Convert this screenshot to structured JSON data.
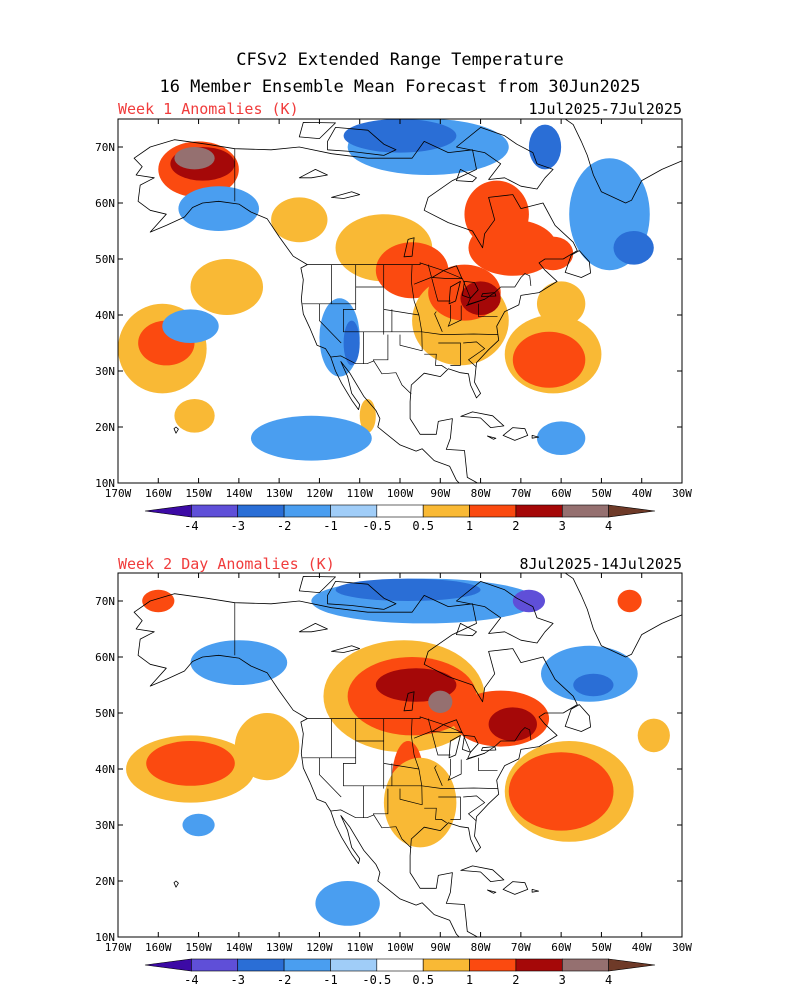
{
  "header": {
    "title_line1": "CFSv2 Extended Range Temperature",
    "title_line2": "16 Member Ensemble Mean Forecast from 30Jun2025"
  },
  "panels": [
    {
      "label": "Week 1 Anomalies (K)",
      "dates": "1Jul2025-7Jul2025",
      "blobs": [
        {
          "level": 1,
          "lon": -159,
          "lat": 34,
          "rx": 11,
          "ry": 8
        },
        {
          "level": 2,
          "lon": -158,
          "lat": 35,
          "rx": 7,
          "ry": 4
        },
        {
          "level": 1,
          "lon": -143,
          "lat": 45,
          "rx": 9,
          "ry": 5
        },
        {
          "level": 1,
          "lon": -151,
          "lat": 22,
          "rx": 5,
          "ry": 3
        },
        {
          "level": 1,
          "lon": -104,
          "lat": 52,
          "rx": 12,
          "ry": 6
        },
        {
          "level": 2,
          "lon": -97,
          "lat": 48,
          "rx": 9,
          "ry": 5
        },
        {
          "level": 1,
          "lon": -85,
          "lat": 39,
          "rx": 12,
          "ry": 8
        },
        {
          "level": 2,
          "lon": -84,
          "lat": 44,
          "rx": 9,
          "ry": 5
        },
        {
          "level": 3,
          "lon": -80,
          "lat": 43,
          "rx": 5,
          "ry": 3
        },
        {
          "level": 2,
          "lon": -76,
          "lat": 58,
          "rx": 8,
          "ry": 6
        },
        {
          "level": 2,
          "lon": -72,
          "lat": 52,
          "rx": 11,
          "ry": 5
        },
        {
          "level": 2,
          "lon": -62,
          "lat": 51,
          "rx": 5,
          "ry": 3
        },
        {
          "level": 1,
          "lon": -62,
          "lat": 33,
          "rx": 12,
          "ry": 7
        },
        {
          "level": 2,
          "lon": -63,
          "lat": 32,
          "rx": 9,
          "ry": 5
        },
        {
          "level": 1,
          "lon": -60,
          "lat": 42,
          "rx": 6,
          "ry": 4
        },
        {
          "level": 1,
          "lon": -125,
          "lat": 57,
          "rx": 7,
          "ry": 4
        },
        {
          "level": 2,
          "lon": -150,
          "lat": 66,
          "rx": 10,
          "ry": 5
        },
        {
          "level": 3,
          "lon": -149,
          "lat": 67,
          "rx": 8,
          "ry": 3
        },
        {
          "level": 4,
          "lon": -151,
          "lat": 68,
          "rx": 5,
          "ry": 2
        },
        {
          "level": 1,
          "lon": -108,
          "lat": 22,
          "rx": 2,
          "ry": 3
        },
        {
          "level": -1,
          "lon": -115,
          "lat": 36,
          "rx": 5,
          "ry": 7
        },
        {
          "level": -2,
          "lon": -112,
          "lat": 35,
          "rx": 2,
          "ry": 4
        },
        {
          "level": -1,
          "lon": -122,
          "lat": 18,
          "rx": 15,
          "ry": 4
        },
        {
          "level": -1,
          "lon": -145,
          "lat": 59,
          "rx": 10,
          "ry": 4
        },
        {
          "level": -1,
          "lon": -93,
          "lat": 70,
          "rx": 20,
          "ry": 5
        },
        {
          "level": -2,
          "lon": -100,
          "lat": 72,
          "rx": 14,
          "ry": 3
        },
        {
          "level": -2,
          "lon": -64,
          "lat": 70,
          "rx": 4,
          "ry": 4
        },
        {
          "level": -1,
          "lon": -48,
          "lat": 58,
          "rx": 10,
          "ry": 10
        },
        {
          "level": -2,
          "lon": -42,
          "lat": 52,
          "rx": 5,
          "ry": 3
        },
        {
          "level": -1,
          "lon": -60,
          "lat": 18,
          "rx": 6,
          "ry": 3
        },
        {
          "level": -1,
          "lon": -152,
          "lat": 38,
          "rx": 7,
          "ry": 3
        }
      ]
    },
    {
      "label": "Week 2 Day Anomalies (K)",
      "dates": "8Jul2025-14Jul2025",
      "blobs": [
        {
          "level": 1,
          "lon": -152,
          "lat": 40,
          "rx": 16,
          "ry": 6
        },
        {
          "level": 2,
          "lon": -152,
          "lat": 41,
          "rx": 11,
          "ry": 4
        },
        {
          "level": 1,
          "lon": -133,
          "lat": 44,
          "rx": 8,
          "ry": 6
        },
        {
          "level": 1,
          "lon": -99,
          "lat": 53,
          "rx": 20,
          "ry": 10
        },
        {
          "level": 2,
          "lon": -97,
          "lat": 53,
          "rx": 16,
          "ry": 7
        },
        {
          "level": 3,
          "lon": -96,
          "lat": 55,
          "rx": 10,
          "ry": 3
        },
        {
          "level": 4,
          "lon": -90,
          "lat": 52,
          "rx": 3,
          "ry": 2
        },
        {
          "level": 2,
          "lon": -75,
          "lat": 49,
          "rx": 12,
          "ry": 5
        },
        {
          "level": 3,
          "lon": -72,
          "lat": 48,
          "rx": 6,
          "ry": 3
        },
        {
          "level": 2,
          "lon": -98,
          "lat": 38,
          "rx": 4,
          "ry": 7
        },
        {
          "level": 1,
          "lon": -95,
          "lat": 34,
          "rx": 9,
          "ry": 8
        },
        {
          "level": 1,
          "lon": -58,
          "lat": 36,
          "rx": 16,
          "ry": 9
        },
        {
          "level": 2,
          "lon": -60,
          "lat": 36,
          "rx": 13,
          "ry": 7
        },
        {
          "level": 1,
          "lon": -37,
          "lat": 46,
          "rx": 4,
          "ry": 3
        },
        {
          "level": 2,
          "lon": -160,
          "lat": 70,
          "rx": 4,
          "ry": 2
        },
        {
          "level": 2,
          "lon": -43,
          "lat": 70,
          "rx": 3,
          "ry": 2
        },
        {
          "level": -1,
          "lon": -94,
          "lat": 70,
          "rx": 28,
          "ry": 4
        },
        {
          "level": -2,
          "lon": -98,
          "lat": 72,
          "rx": 18,
          "ry": 2
        },
        {
          "level": -3,
          "lon": -68,
          "lat": 70,
          "rx": 4,
          "ry": 2
        },
        {
          "level": -1,
          "lon": -140,
          "lat": 59,
          "rx": 12,
          "ry": 4
        },
        {
          "level": -1,
          "lon": -53,
          "lat": 57,
          "rx": 12,
          "ry": 5
        },
        {
          "level": -2,
          "lon": -52,
          "lat": 55,
          "rx": 5,
          "ry": 2
        },
        {
          "level": -1,
          "lon": -113,
          "lat": 16,
          "rx": 8,
          "ry": 4
        },
        {
          "level": -1,
          "lon": -150,
          "lat": 30,
          "rx": 4,
          "ry": 2
        }
      ]
    }
  ],
  "map": {
    "lon_min": -170,
    "lon_max": -30,
    "lat_min": 10,
    "lat_max": 75,
    "lat_ticks": [
      "10N",
      "20N",
      "30N",
      "40N",
      "50N",
      "60N",
      "70N"
    ],
    "lon_ticks": [
      "170W",
      "160W",
      "150W",
      "140W",
      "130W",
      "120W",
      "110W",
      "100W",
      "90W",
      "80W",
      "70W",
      "60W",
      "50W",
      "40W",
      "30W"
    ]
  },
  "colorbar": {
    "labels": [
      "-4",
      "-3",
      "-2",
      "-1",
      "-0.5",
      "0.5",
      "1",
      "2",
      "3",
      "4"
    ],
    "colors": [
      "#3c0aa5",
      "#5f4fd8",
      "#2a6ed6",
      "#4a9ef0",
      "#a0cdf8",
      "#ffffff",
      "#f9b935",
      "#fb4a10",
      "#a50808",
      "#957070",
      "#6e3a28"
    ],
    "levels": {
      "-3": "#5f4fd8",
      "-2": "#2a6ed6",
      "-1": "#4a9ef0",
      "-0.5": "#a0cdf8",
      "1": "#f9b935",
      "2": "#fb4a10",
      "3": "#a50808",
      "4": "#957070"
    }
  },
  "colors": {
    "title": "#000000",
    "panel_label": "#f03c3c",
    "coast": "#000000"
  }
}
